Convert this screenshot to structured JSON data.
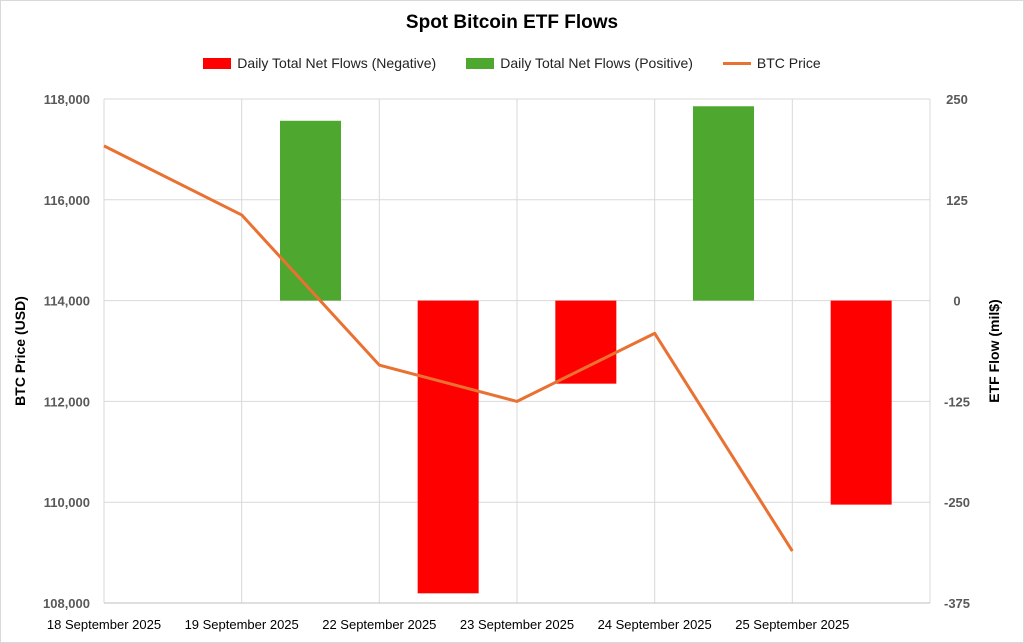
{
  "chart_data": {
    "type": "bar",
    "title": "Spot Bitcoin ETF Flows",
    "categories": [
      "18 September 2025",
      "19 September 2025",
      "22 September 2025",
      "23 September 2025",
      "24 September 2025",
      "25 September 2025"
    ],
    "series": [
      {
        "name": "Daily Total Net Flows (Negative)",
        "type": "bar",
        "axis": "right",
        "color": "#ff0000",
        "values": [
          null,
          null,
          -363,
          -103,
          null,
          -253
        ]
      },
      {
        "name": "Daily Total Net Flows (Positive)",
        "type": "bar",
        "axis": "right",
        "color": "#4ea72e",
        "values": [
          null,
          223,
          null,
          null,
          241,
          null
        ]
      },
      {
        "name": "BTC Price",
        "type": "line",
        "axis": "left",
        "color": "#e97132",
        "values": [
          117070,
          115700,
          112720,
          112000,
          113350,
          109030
        ]
      }
    ],
    "ylabel_left": "BTC Price (USD)",
    "ylabel_right": "ETF Flow (mil$)",
    "ylim_left": [
      108000,
      118000
    ],
    "ylim_right": [
      -375,
      250
    ],
    "yticks_left": [
      "118,000",
      "116,000",
      "114,000",
      "112,000",
      "110,000",
      "108,000"
    ],
    "yticks_right": [
      "250",
      "125",
      "0",
      "-125",
      "-250",
      "-375"
    ],
    "legend_position": "top",
    "grid": true
  }
}
